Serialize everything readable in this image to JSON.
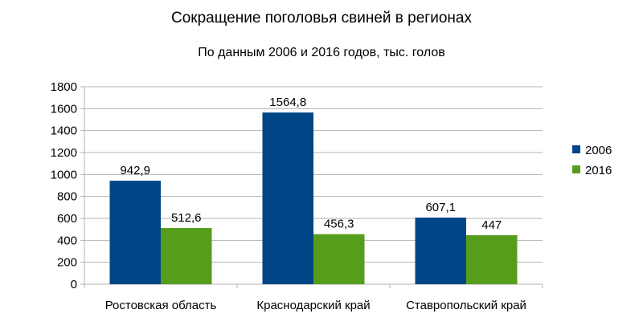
{
  "chart_data": {
    "type": "bar",
    "title": "Сокращение поголовья свиней в регионах",
    "subtitle": "По данным 2006 и 2016 годов, тыс. голов",
    "categories": [
      "Ростовская область",
      "Краснодарский край",
      "Ставропольский край"
    ],
    "series": [
      {
        "name": "2006",
        "color": "#004586",
        "values": [
          942.9,
          1564.8,
          607.1
        ],
        "labels": [
          "942,9",
          "1564,8",
          "607,1"
        ]
      },
      {
        "name": "2016",
        "color": "#579d1c",
        "values": [
          512.6,
          456.3,
          447
        ],
        "labels": [
          "512,6",
          "456,3",
          "447"
        ]
      }
    ],
    "ylim": [
      0,
      1800
    ],
    "yticks": [
      0,
      200,
      400,
      600,
      800,
      1000,
      1200,
      1400,
      1600,
      1800
    ],
    "grid": true,
    "legend": "right",
    "xlabel": "",
    "ylabel": ""
  }
}
